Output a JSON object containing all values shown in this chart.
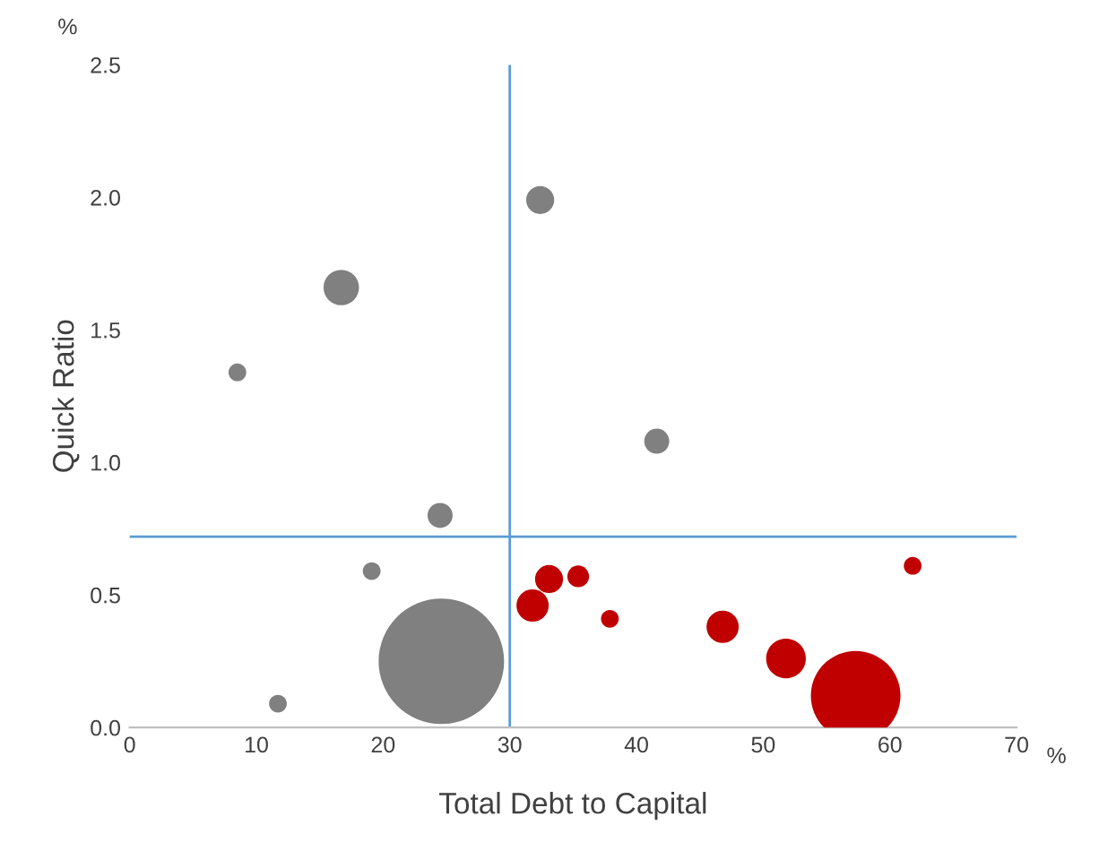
{
  "chart_data": {
    "type": "bubble",
    "xlabel": "Total Debt to Capital",
    "ylabel": "Quick Ratio",
    "annotations": [
      "%",
      "%"
    ],
    "xlim": [
      0,
      70
    ],
    "xticks": [
      0,
      10,
      20,
      30,
      40,
      50,
      60,
      70
    ],
    "ylim": [
      0,
      2.5
    ],
    "yticks": [
      {
        "value": 0,
        "label": "0.0"
      },
      {
        "value": 0.5,
        "label": "0.5"
      },
      {
        "value": 1,
        "label": "1.0"
      },
      {
        "value": 1.5,
        "label": "1.5"
      },
      {
        "value": 2,
        "label": "2.0"
      },
      {
        "value": 2.5,
        "label": "2.5"
      }
    ],
    "grid": false,
    "legend": false,
    "ref_lines": [
      {
        "axis": "x",
        "value": 30,
        "color": "#5b9bd5"
      },
      {
        "axis": "y",
        "value": 0.72,
        "color": "#5b9bd5"
      }
    ],
    "series": [
      {
        "color": "#808080",
        "x": [
          32.4,
          16.7,
          8.5,
          41.6,
          24.5,
          19.1,
          24.6,
          11.7
        ],
        "values": [
          1.99,
          1.66,
          1.34,
          1.08,
          0.8,
          0.59,
          0.25,
          0.09
        ],
        "sizes": [
          0.05,
          0.08,
          0.02,
          0.04,
          0.04,
          0.02,
          1,
          0.02
        ]
      },
      {
        "color": "#c00000",
        "x": [
          31.8,
          33.1,
          35.4,
          37.9,
          46.8,
          51.8,
          57.3,
          61.8
        ],
        "values": [
          0.46,
          0.56,
          0.57,
          0.41,
          0.38,
          0.26,
          0.12,
          0.61
        ],
        "sizes": [
          0.066,
          0.05,
          0.03,
          0.02,
          0.066,
          0.1,
          0.51,
          0.02
        ]
      }
    ]
  }
}
